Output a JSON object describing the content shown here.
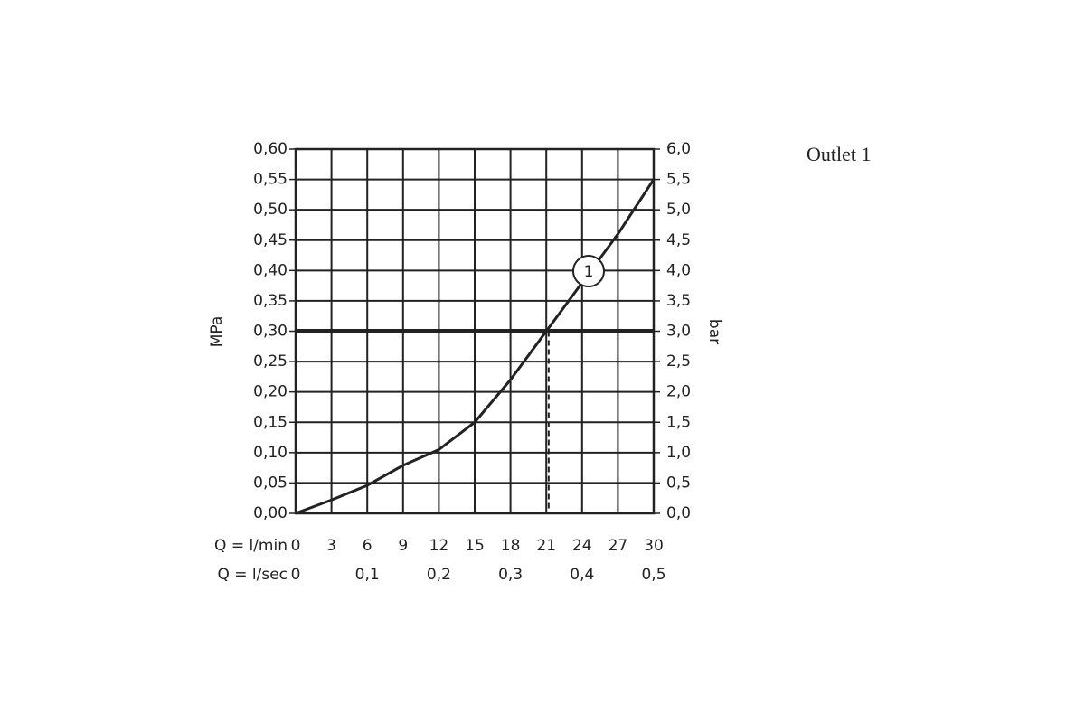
{
  "chart_data": {
    "type": "line",
    "note": "Outlet 1",
    "xlabel": "Q = l/min",
    "x2label": "Q = l/sec",
    "ylabel": "MPa",
    "y2label": "bar",
    "x": [
      0,
      3,
      6,
      9,
      12,
      15,
      18,
      21,
      24,
      27,
      30
    ],
    "series": [
      {
        "name": "1",
        "color": "#222222",
        "values": [
          0,
          0.022,
          0.046,
          0.079,
          0.105,
          0.15,
          0.22,
          0.3,
          0.38,
          0.46,
          0.55
        ]
      }
    ],
    "threshold": {
      "y": 0.3,
      "x": 21.2
    },
    "xlim": [
      0,
      30
    ],
    "xticks": [
      0,
      3,
      6,
      9,
      12,
      15,
      18,
      21,
      24,
      27,
      30
    ],
    "x2lim": [
      0,
      0.5
    ],
    "x2ticks": [
      0,
      {
        "value": 0.1,
        "label": "0,1"
      },
      {
        "value": 0.2,
        "label": "0,2"
      },
      {
        "value": 0.3,
        "label": "0,3"
      },
      {
        "value": 0.4,
        "label": "0,4"
      },
      {
        "value": 0.5,
        "label": "0,5"
      }
    ],
    "ylim": [
      0,
      0.6
    ],
    "yticks": [
      {
        "value": 0,
        "label": "0,00"
      },
      {
        "value": 0.05,
        "label": "0,05"
      },
      {
        "value": 0.1,
        "label": "0,10"
      },
      {
        "value": 0.15,
        "label": "0,15"
      },
      {
        "value": 0.2,
        "label": "0,20"
      },
      {
        "value": 0.25,
        "label": "0,25"
      },
      {
        "value": 0.3,
        "label": "0,30"
      },
      {
        "value": 0.35,
        "label": "0,35"
      },
      {
        "value": 0.4,
        "label": "0,40"
      },
      {
        "value": 0.45,
        "label": "0,45"
      },
      {
        "value": 0.5,
        "label": "0,50"
      },
      {
        "value": 0.55,
        "label": "0,55"
      },
      {
        "value": 0.6,
        "label": "0,60"
      }
    ],
    "y2lim": [
      0,
      6
    ],
    "y2ticks": [
      {
        "value": 0,
        "label": "0,0"
      },
      {
        "value": 0.5,
        "label": "0,5"
      },
      {
        "value": 1,
        "label": "1,0"
      },
      {
        "value": 1.5,
        "label": "1,5"
      },
      {
        "value": 2,
        "label": "2,0"
      },
      {
        "value": 2.5,
        "label": "2,5"
      },
      {
        "value": 3,
        "label": "3,0"
      },
      {
        "value": 3.5,
        "label": "3,5"
      },
      {
        "value": 4,
        "label": "4,0"
      },
      {
        "value": 4.5,
        "label": "4,5"
      },
      {
        "value": 5,
        "label": "5,0"
      },
      {
        "value": 5.5,
        "label": "5,5"
      },
      {
        "value": 6,
        "label": "6,0"
      }
    ],
    "grid": true
  }
}
